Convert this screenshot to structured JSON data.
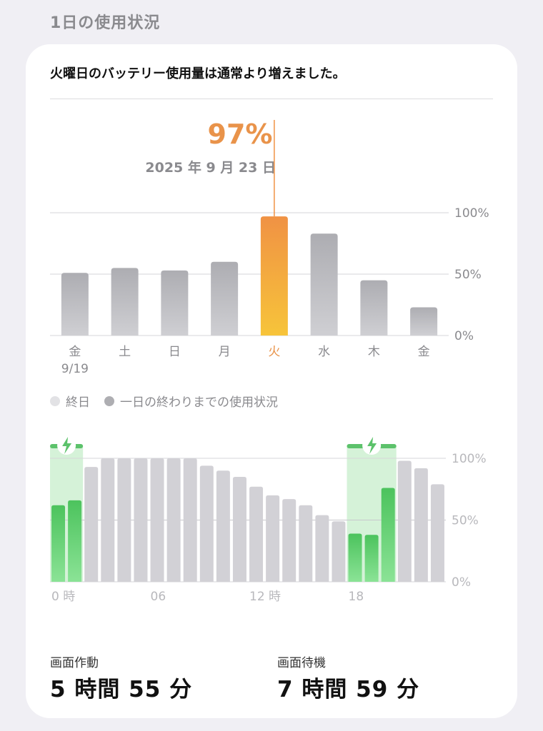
{
  "section_title": "1日の使用状況",
  "card": {
    "headline": "火曜日のバッテリー使用量は通常より増えました。",
    "selected_value": "97%",
    "selected_date": "2025 年 9 月 23 日",
    "legend": [
      {
        "label": "終日",
        "color": "#e2e2e5"
      },
      {
        "label": "一日の終わりまでの使用状況",
        "color": "#aeaeb2"
      }
    ],
    "stats": [
      {
        "label": "画面作動",
        "value": "5 時間 55 分"
      },
      {
        "label": "画面待機",
        "value": "7 時間 59 分"
      }
    ]
  },
  "chart_data": [
    {
      "type": "bar",
      "categories": [
        "金",
        "土",
        "日",
        "月",
        "火",
        "水",
        "木",
        "金"
      ],
      "category_sublabels": [
        "9/19",
        "",
        "",
        "",
        "",
        "",
        "",
        ""
      ],
      "values": [
        51,
        55,
        53,
        60,
        97,
        83,
        45,
        23
      ],
      "selected_index": 4,
      "y_ticks": [
        "100%",
        "50%",
        "0%"
      ],
      "ylim": [
        0,
        100
      ],
      "colors": {
        "bar": "#b5b5ba",
        "selected_top": "#f09244",
        "selected_bottom": "#f7c43a",
        "selected_label": "#e9934a"
      }
    },
    {
      "type": "bar",
      "x_ticks": [
        "0 時",
        "06",
        "12 時",
        "18"
      ],
      "values": [
        62,
        66,
        93,
        100,
        100,
        100,
        100,
        100,
        100,
        94,
        90,
        85,
        77,
        70,
        67,
        62,
        54,
        49,
        39,
        38,
        76,
        98,
        92,
        79
      ],
      "charging": [
        true,
        true,
        false,
        false,
        false,
        false,
        false,
        false,
        false,
        false,
        false,
        false,
        false,
        false,
        false,
        false,
        false,
        false,
        true,
        true,
        true,
        false,
        false,
        false
      ],
      "y_ticks": [
        "100%",
        "50%",
        "0%"
      ],
      "ylim": [
        0,
        100
      ],
      "colors": {
        "bar": "#d2d1d6",
        "charging_bar": "#5fcd6e",
        "charging_band": "#d5f2d8",
        "charging_cap": "#5cc26b"
      }
    }
  ]
}
